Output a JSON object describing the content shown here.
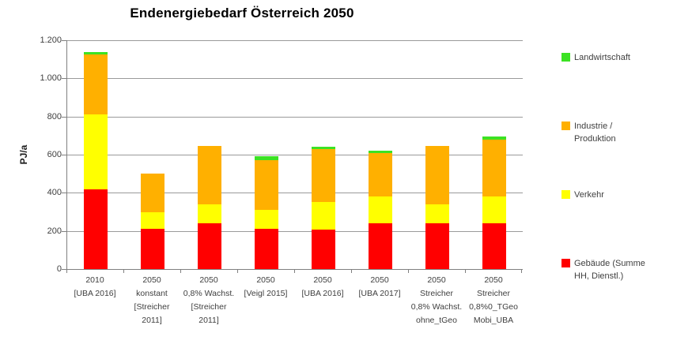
{
  "chart_data": {
    "type": "bar",
    "stacked": true,
    "title": "Endenergiebedarf Österreich 2050",
    "ylabel": "PJ/a",
    "ylim": [
      0,
      1200
    ],
    "ytick_step": 200,
    "ytick_labels": [
      "0",
      "200",
      "400",
      "600",
      "800",
      "1.000",
      "1.200"
    ],
    "grid": true,
    "legend_position": "right",
    "axis_color": "#808080",
    "grid_color": "#9A9A9A",
    "categories": [
      [
        "2010",
        "[UBA 2016]"
      ],
      [
        "2050",
        "konstant",
        "[Streicher",
        "2011]"
      ],
      [
        "2050",
        "0,8% Wachst.",
        "[Streicher",
        "2011]"
      ],
      [
        "2050",
        "[Veigl 2015]"
      ],
      [
        "2050",
        "[UBA 2016]"
      ],
      [
        "2050",
        "[UBA 2017]"
      ],
      [
        "2050",
        "Streicher",
        "0,8% Wachst.",
        "ohne_tGeo"
      ],
      [
        "2050",
        "Streicher",
        "0,8%0_TGeo",
        "Mobi_UBA"
      ]
    ],
    "series": [
      {
        "key": "gebaeude",
        "name": "Gebäude (Summe HH, Dienstl.)",
        "color": "#FF0000",
        "values": [
          420,
          210,
          240,
          210,
          205,
          240,
          240,
          240
        ]
      },
      {
        "key": "verkehr",
        "name": "Verkehr",
        "color": "#FFFF00",
        "values": [
          390,
          90,
          100,
          100,
          145,
          140,
          100,
          140
        ]
      },
      {
        "key": "industrie",
        "name": "Industrie / Produktion",
        "color": "#FFB000",
        "values": [
          315,
          200,
          305,
          260,
          280,
          230,
          305,
          300
        ]
      },
      {
        "key": "landwirtschaft",
        "name": "Landwirtschaft",
        "color": "#3CE223",
        "values": [
          15,
          0,
          0,
          20,
          10,
          10,
          0,
          15
        ]
      }
    ],
    "stack_totals": [
      1140,
      500,
      645,
      590,
      640,
      620,
      645,
      695
    ],
    "legend": {
      "entries": [
        {
          "key": "landwirtschaft",
          "lines": [
            "Landwirtschaft"
          ],
          "color": "#3CE223"
        },
        {
          "key": "industrie",
          "lines": [
            "Industrie /",
            "Produktion"
          ],
          "color": "#FFB000"
        },
        {
          "key": "verkehr",
          "lines": [
            "Verkehr"
          ],
          "color": "#FFFF00"
        },
        {
          "key": "gebaeude",
          "lines": [
            "Gebäude (Summe",
            "HH, Dienstl.)"
          ],
          "color": "#FF0000"
        }
      ]
    }
  }
}
